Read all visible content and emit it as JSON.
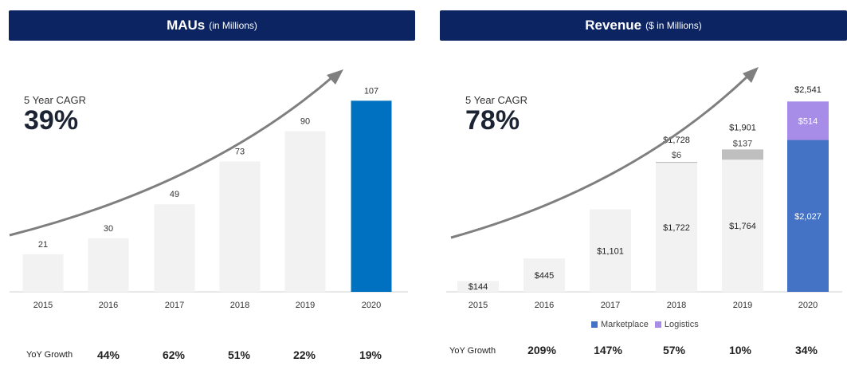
{
  "mau": {
    "title": "MAUs",
    "subtitle": "(in Millions)",
    "cagr_label": "5 Year CAGR",
    "cagr_value": "39%",
    "yoy_title": "YoY Growth",
    "yoy": [
      "44%",
      "62%",
      "51%",
      "22%",
      "19%"
    ]
  },
  "revenue": {
    "title": "Revenue",
    "subtitle": "($ in Millions)",
    "cagr_label": "5 Year CAGR",
    "cagr_value": "78%",
    "yoy_title": "YoY Growth",
    "yoy": [
      "209%",
      "147%",
      "57%",
      "10%",
      "34%"
    ],
    "legend": [
      "Marketplace",
      "Logistics"
    ]
  },
  "colors": {
    "header_bg": "#0c2461",
    "bar_light": "#f2f2f2",
    "mau_highlight": "#0070c0",
    "marketplace": "#4472c4",
    "logistics": "#a88de8",
    "logistics_grey": "#bfbfbf",
    "arrow": "#7f7f7f"
  },
  "chart_data": [
    {
      "type": "bar",
      "title": "MAUs (in Millions)",
      "categories": [
        "2015",
        "2016",
        "2017",
        "2018",
        "2019",
        "2020"
      ],
      "values": [
        21,
        30,
        49,
        73,
        90,
        107
      ],
      "labels": [
        "21",
        "30",
        "49",
        "73",
        "90",
        "107"
      ],
      "ylim": [
        0,
        125
      ]
    },
    {
      "type": "bar",
      "stacked": true,
      "title": "Revenue ($ in Millions)",
      "categories": [
        "2015",
        "2016",
        "2017",
        "2018",
        "2019",
        "2020"
      ],
      "series": [
        {
          "name": "Marketplace",
          "values": [
            144,
            445,
            1101,
            1722,
            1764,
            2027
          ],
          "labels": [
            "$144",
            "$445",
            "$1,101",
            "$1,722",
            "$1,764",
            "$2,027"
          ]
        },
        {
          "name": "Logistics",
          "values": [
            0,
            0,
            0,
            6,
            137,
            514
          ],
          "labels": [
            "",
            "",
            "",
            "$6",
            "$137",
            "$514"
          ]
        }
      ],
      "totals": [
        144,
        445,
        1101,
        1728,
        1901,
        2541
      ],
      "total_labels": [
        "",
        "",
        "",
        "$1,728",
        "$1,901",
        "$2,541"
      ],
      "ylim": [
        0,
        2980
      ]
    }
  ]
}
